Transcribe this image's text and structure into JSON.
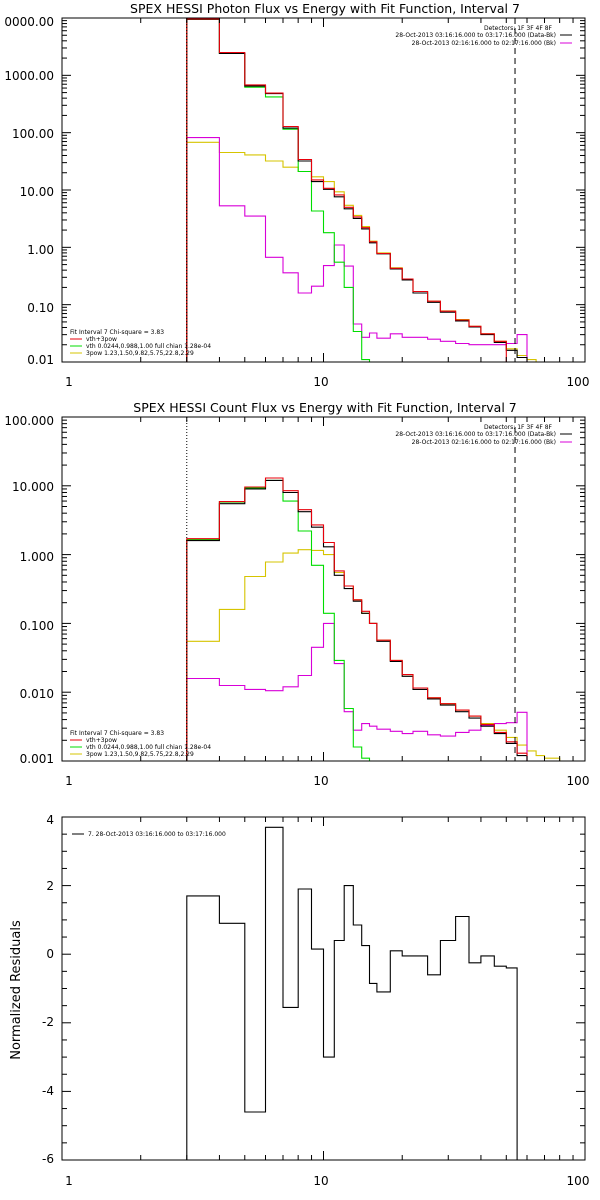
{
  "colors": {
    "black": "#000000",
    "red": "#e8000b",
    "green": "#00dd00",
    "magenta": "#d800d8",
    "gold": "#d6c400",
    "orange": "#f0a000"
  },
  "chart_data": [
    {
      "type": "line",
      "title": "SPEX HESSI Photon Flux vs Energy with Fit Function, Interval 7",
      "scale": "log-log",
      "xlim": [
        1,
        100
      ],
      "ylim": [
        0.01,
        10000
      ],
      "x_ticks": [
        "1",
        "10",
        "100"
      ],
      "y_ticks": [
        "0.01",
        "0.10",
        "1.00",
        "10.00",
        "100.00",
        "1000.00",
        "0000.00"
      ],
      "vlines": {
        "dotted": 3,
        "dashed": 54
      },
      "legend_right": {
        "detectors": "Detectors: 1F 3F 4F 8F",
        "lines": [
          "28-Oct-2013 03:16:16.000 to 03:17:16.000 (Data-Bk)",
          "28-Oct-2013 02:16:16.000 to 02:17:16.000 (Bk)"
        ]
      },
      "legend_left": {
        "header": "Fit Interval  7    Chi-square = 3.83",
        "entries": [
          "vth+3pow",
          "vth 0.0244,0.988,1.00  full chian 1.28e-04",
          "3pow  1.23,1.50,9.82,5.75,22.8,2.29"
        ]
      },
      "edges": [
        3.0,
        4.0,
        5.0,
        6.0,
        7.0,
        8.0,
        9.0,
        10.0,
        11.0,
        12.0,
        13.0,
        14.0,
        15.0,
        16.0,
        18.0,
        20.0,
        22.0,
        25.0,
        28.0,
        32.0,
        36.0,
        40.0,
        45.0,
        50.0,
        55.0,
        60.0,
        65.0
      ],
      "series": [
        {
          "name": "Data-Bk",
          "color": "black",
          "values": [
            9500,
            2400,
            650,
            480,
            120,
            32,
            14,
            10.3,
            7.6,
            4.7,
            3.2,
            2.1,
            1.2,
            0.77,
            0.42,
            0.27,
            0.16,
            0.11,
            0.074,
            0.052,
            0.041,
            0.03,
            0.022,
            0.016,
            0.012
          ]
        },
        {
          "name": "Bk",
          "color": "magenta",
          "values": [
            82,
            5.3,
            3.5,
            0.67,
            0.36,
            0.16,
            0.21,
            0.48,
            1.1,
            0.47,
            0.046,
            0.027,
            0.032,
            0.026,
            0.031,
            0.027,
            0.027,
            0.025,
            0.023,
            0.021,
            0.02,
            0.02,
            0.02,
            0.021,
            0.03
          ]
        },
        {
          "name": "vth+3pow",
          "color": "red",
          "values": [
            9600,
            2500,
            680,
            490,
            128,
            34,
            15,
            10.7,
            8.2,
            5.0,
            3.4,
            2.2,
            1.25,
            0.78,
            0.43,
            0.28,
            0.17,
            0.115,
            0.077,
            0.054,
            0.042,
            0.031,
            0.023
          ]
        },
        {
          "name": "vth",
          "color": "green",
          "values": [
            9500,
            2400,
            620,
            420,
            115,
            21,
            4.3,
            1.8,
            0.55,
            0.2,
            0.034,
            0.011
          ]
        },
        {
          "name": "3pow",
          "color": "gold",
          "values": [
            68,
            45,
            41,
            32,
            25,
            21,
            17,
            14,
            9.3,
            5.4,
            3.6,
            2.3,
            1.28,
            0.8,
            0.44,
            0.28,
            0.17,
            0.115,
            0.078,
            0.055,
            0.042,
            0.031,
            0.023,
            0.017,
            0.013,
            0.011
          ]
        }
      ]
    },
    {
      "type": "line",
      "title": "SPEX HESSI Count Flux vs Energy with Fit Function, Interval 7",
      "scale": "log-log",
      "xlim": [
        1,
        100
      ],
      "ylim": [
        0.001,
        100
      ],
      "x_ticks": [
        "1",
        "10",
        "100"
      ],
      "y_ticks": [
        "0.001",
        "0.010",
        "0.100",
        "1.000",
        "10.000",
        "100.000"
      ],
      "vlines": {
        "dotted": 3,
        "dashed": 54
      },
      "legend_right": {
        "detectors": "Detectors: 1F 3F 4F 8F",
        "lines": [
          "28-Oct-2013 03:16:16.000 to 03:17:16.000 (Data-Bk)",
          "28-Oct-2013 02:16:16.000 to 02:17:16.000 (Bk)"
        ]
      },
      "legend_left": {
        "header": "Fit Interval  7    Chi-square = 3.83",
        "entries": [
          "vth+3pow",
          "vth 0.0244,0.988,1.00  full chian 1.28e-04",
          "3pow  1.23,1.50,9.82,5.75,22.8,2.29"
        ]
      },
      "edges": [
        3.0,
        4.0,
        5.0,
        6.0,
        7.0,
        8.0,
        9.0,
        10.0,
        11.0,
        12.0,
        13.0,
        14.0,
        15.0,
        16.0,
        18.0,
        20.0,
        22.0,
        25.0,
        28.0,
        32.0,
        36.0,
        40.0,
        45.0,
        50.0,
        55.0,
        60.0,
        65.0,
        70.0,
        80.0,
        90.0
      ],
      "series": [
        {
          "name": "Data-Bk",
          "color": "black",
          "values": [
            1.6,
            5.5,
            9.0,
            12.0,
            8.0,
            4.2,
            2.5,
            1.3,
            0.5,
            0.32,
            0.21,
            0.14,
            0.1,
            0.055,
            0.028,
            0.017,
            0.011,
            0.008,
            0.0065,
            0.0052,
            0.0042,
            0.0032,
            0.0025,
            0.0018,
            0.0012
          ]
        },
        {
          "name": "Bk",
          "color": "magenta",
          "values": [
            0.0158,
            0.0125,
            0.011,
            0.0105,
            0.012,
            0.0175,
            0.045,
            0.1,
            0.026,
            0.0052,
            0.0028,
            0.0035,
            0.0032,
            0.0029,
            0.0027,
            0.0025,
            0.0027,
            0.0024,
            0.0023,
            0.0026,
            0.0028,
            0.0033,
            0.0035,
            0.0036,
            0.0051
          ]
        },
        {
          "name": "vth+3pow",
          "color": "red",
          "values": [
            1.7,
            5.9,
            9.6,
            13.0,
            8.5,
            4.5,
            2.7,
            1.5,
            0.58,
            0.35,
            0.22,
            0.15,
            0.1,
            0.057,
            0.029,
            0.018,
            0.0115,
            0.0083,
            0.0068,
            0.0055,
            0.0045,
            0.0034,
            0.0026,
            0.0019,
            0.0013
          ]
        },
        {
          "name": "vth",
          "color": "green",
          "values": [
            1.65,
            5.8,
            9.3,
            12.0,
            6.0,
            2.2,
            0.7,
            0.14,
            0.029,
            0.0058,
            0.0016,
            0.0011
          ]
        },
        {
          "name": "3pow",
          "color": "gold",
          "values": [
            0.055,
            0.16,
            0.48,
            0.78,
            1.05,
            1.18,
            1.15,
            1.0,
            0.55,
            0.35,
            0.22,
            0.14,
            0.1,
            0.057,
            0.029,
            0.018,
            0.0115,
            0.0083,
            0.0068,
            0.0055,
            0.0045,
            0.0035,
            0.0028,
            0.0022,
            0.0017,
            0.0014,
            0.0012,
            0.0011,
            0.001
          ]
        }
      ]
    },
    {
      "type": "line",
      "title": "",
      "scale": "log-x",
      "xlim": [
        1,
        100
      ],
      "ylim": [
        -6,
        4
      ],
      "ylabel": "Normalized Residuals",
      "x_ticks": [
        "1",
        "10",
        "100"
      ],
      "y_ticks": [
        "-6",
        "-4",
        "-2",
        "0",
        "2",
        "4"
      ],
      "legend": "7. 28-Oct-2013 03:16:16.000 to 03:17:16.000",
      "edges": [
        3.0,
        4.0,
        5.0,
        6.0,
        7.0,
        8.0,
        9.0,
        10.0,
        11.0,
        12.0,
        13.0,
        14.0,
        15.0,
        16.0,
        18.0,
        20.0,
        22.0,
        25.0,
        28.0,
        32.0,
        36.0,
        40.0,
        45.0,
        50.0,
        55.0
      ],
      "series": [
        {
          "name": "7. 28-Oct-2013 03:16:16.000 to 03:17:16.000",
          "color": "black",
          "values": [
            1.7,
            0.9,
            -4.6,
            3.7,
            -1.55,
            1.9,
            0.15,
            -3.0,
            0.4,
            2.0,
            0.85,
            0.25,
            -0.85,
            -1.1,
            0.1,
            -0.05,
            -0.05,
            -0.6,
            0.4,
            1.1,
            -0.25,
            -0.05,
            -0.35,
            -0.4
          ]
        }
      ]
    }
  ]
}
